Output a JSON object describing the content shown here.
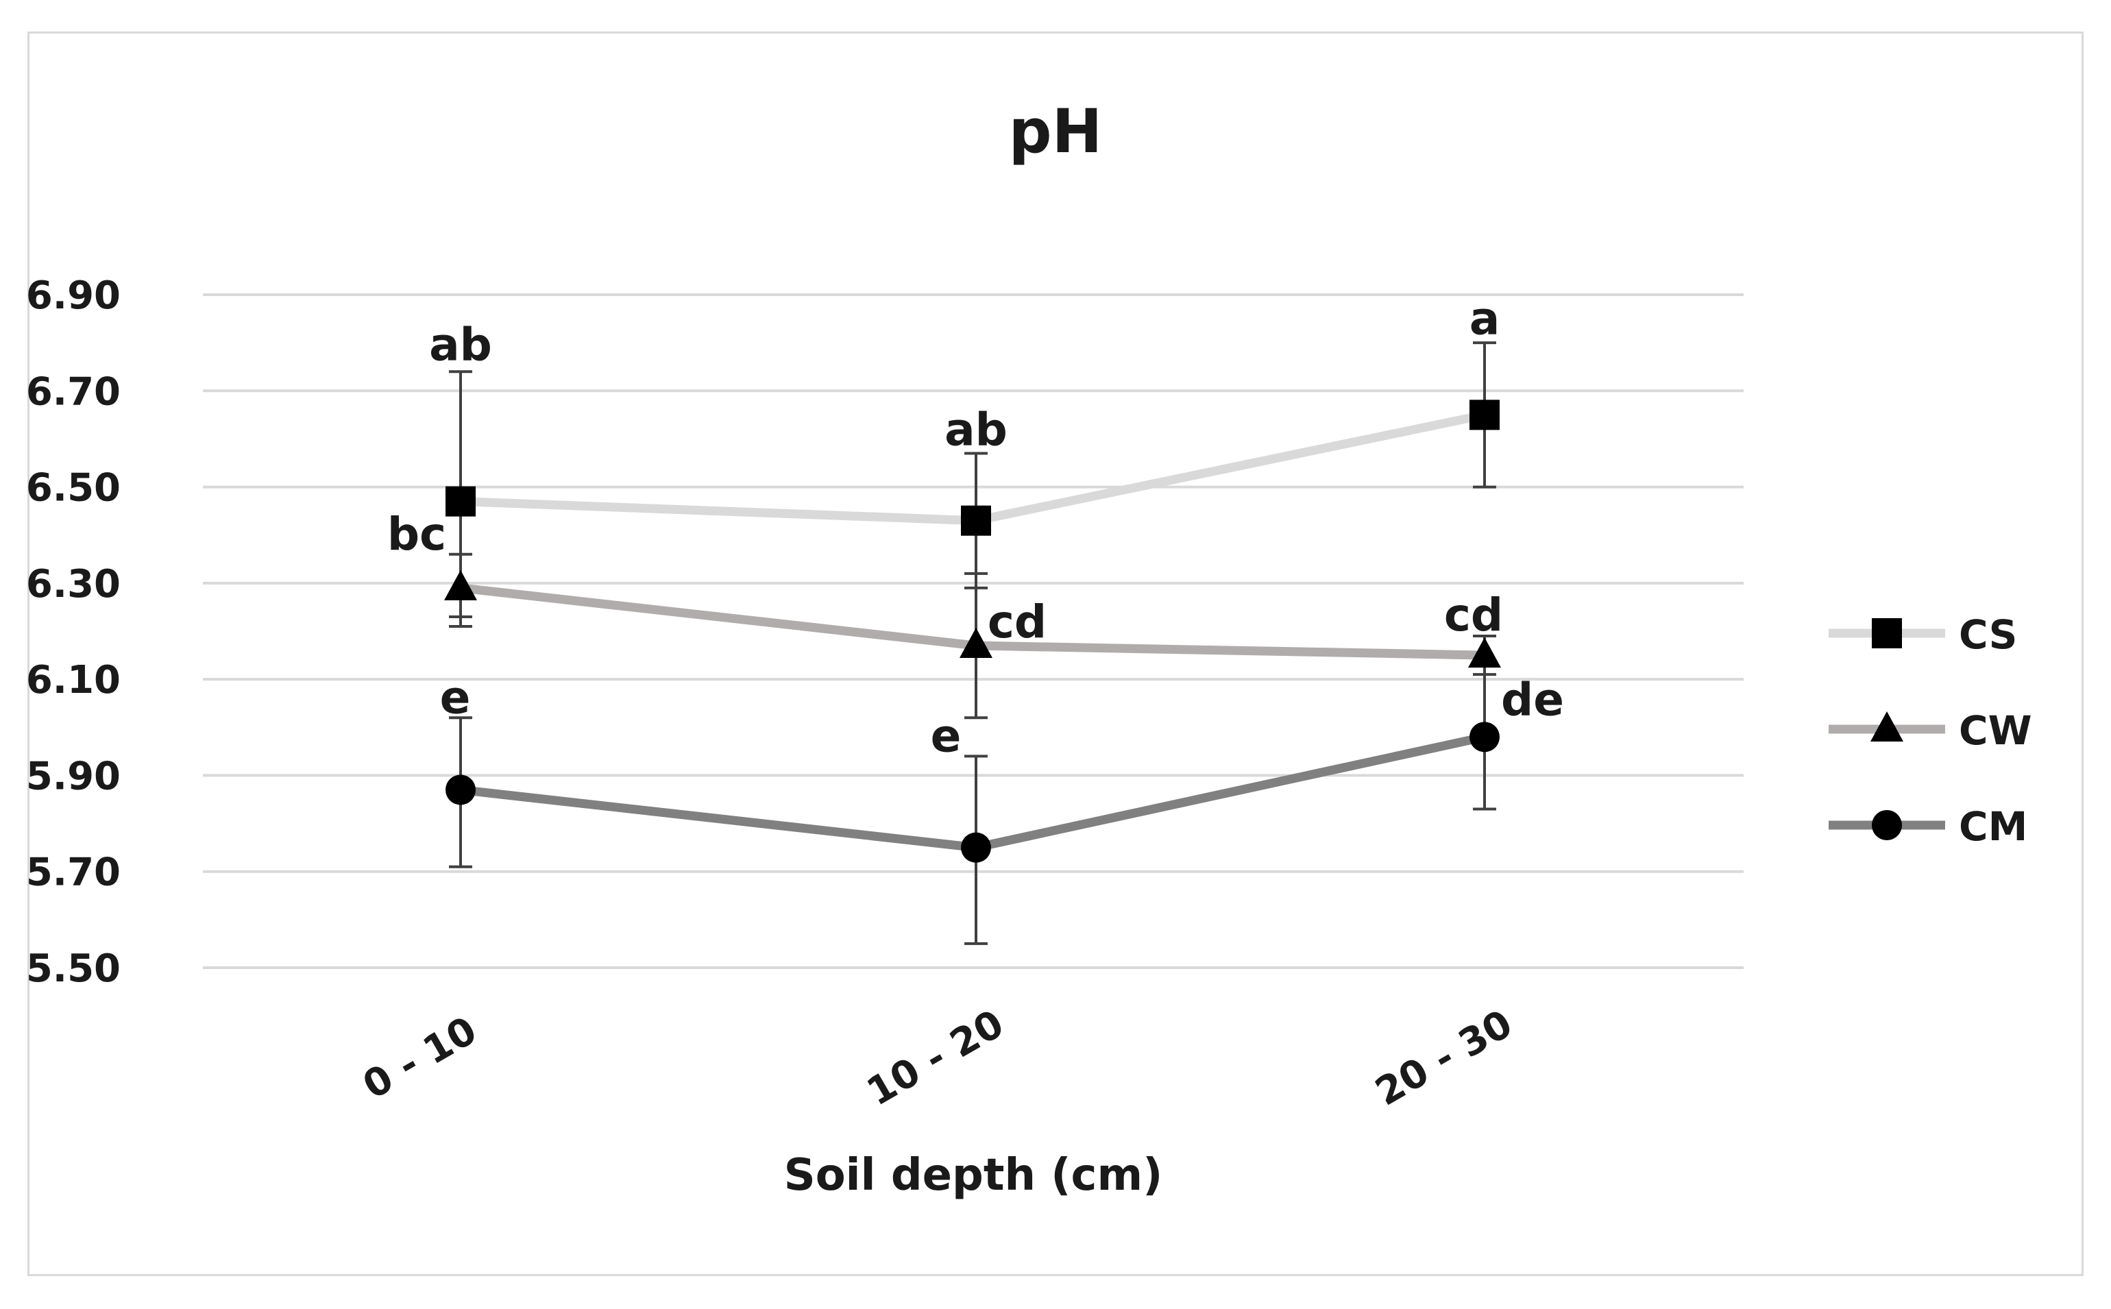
{
  "chart_data": {
    "type": "line",
    "title": "pH",
    "xlabel": "Soil depth (cm)",
    "ylabel": "",
    "categories": [
      "0 - 10",
      "10 - 20",
      "20 - 30"
    ],
    "ylim": [
      5.5,
      6.9
    ],
    "yticks": [
      "6.90",
      "6.70",
      "6.50",
      "6.30",
      "6.10",
      "5.90",
      "5.70",
      "5.50"
    ],
    "ytick_values": [
      6.9,
      6.7,
      6.5,
      6.3,
      6.1,
      5.9,
      5.7,
      5.5
    ],
    "grid": true,
    "legend_position": "right",
    "series": [
      {
        "name": "CS",
        "marker": "square",
        "color": "#d9d9d9",
        "values": [
          6.47,
          6.43,
          6.65
        ],
        "error_low": [
          6.21,
          6.29,
          6.5
        ],
        "error_high": [
          6.74,
          6.57,
          6.8
        ],
        "letters": [
          "ab",
          "ab",
          "a"
        ]
      },
      {
        "name": "CW",
        "marker": "triangle",
        "color": "#b0acac",
        "values": [
          6.29,
          6.17,
          6.15
        ],
        "error_low": [
          6.23,
          6.02,
          6.11
        ],
        "error_high": [
          6.36,
          6.32,
          6.19
        ],
        "letters": [
          "bc",
          "cd",
          "cd"
        ]
      },
      {
        "name": "CM",
        "marker": "circle",
        "color": "#808080",
        "values": [
          5.87,
          5.75,
          5.98
        ],
        "error_low": [
          5.71,
          5.55,
          5.83
        ],
        "error_high": [
          6.02,
          5.94,
          6.13
        ],
        "letters": [
          "e",
          "e",
          "de"
        ]
      }
    ]
  }
}
